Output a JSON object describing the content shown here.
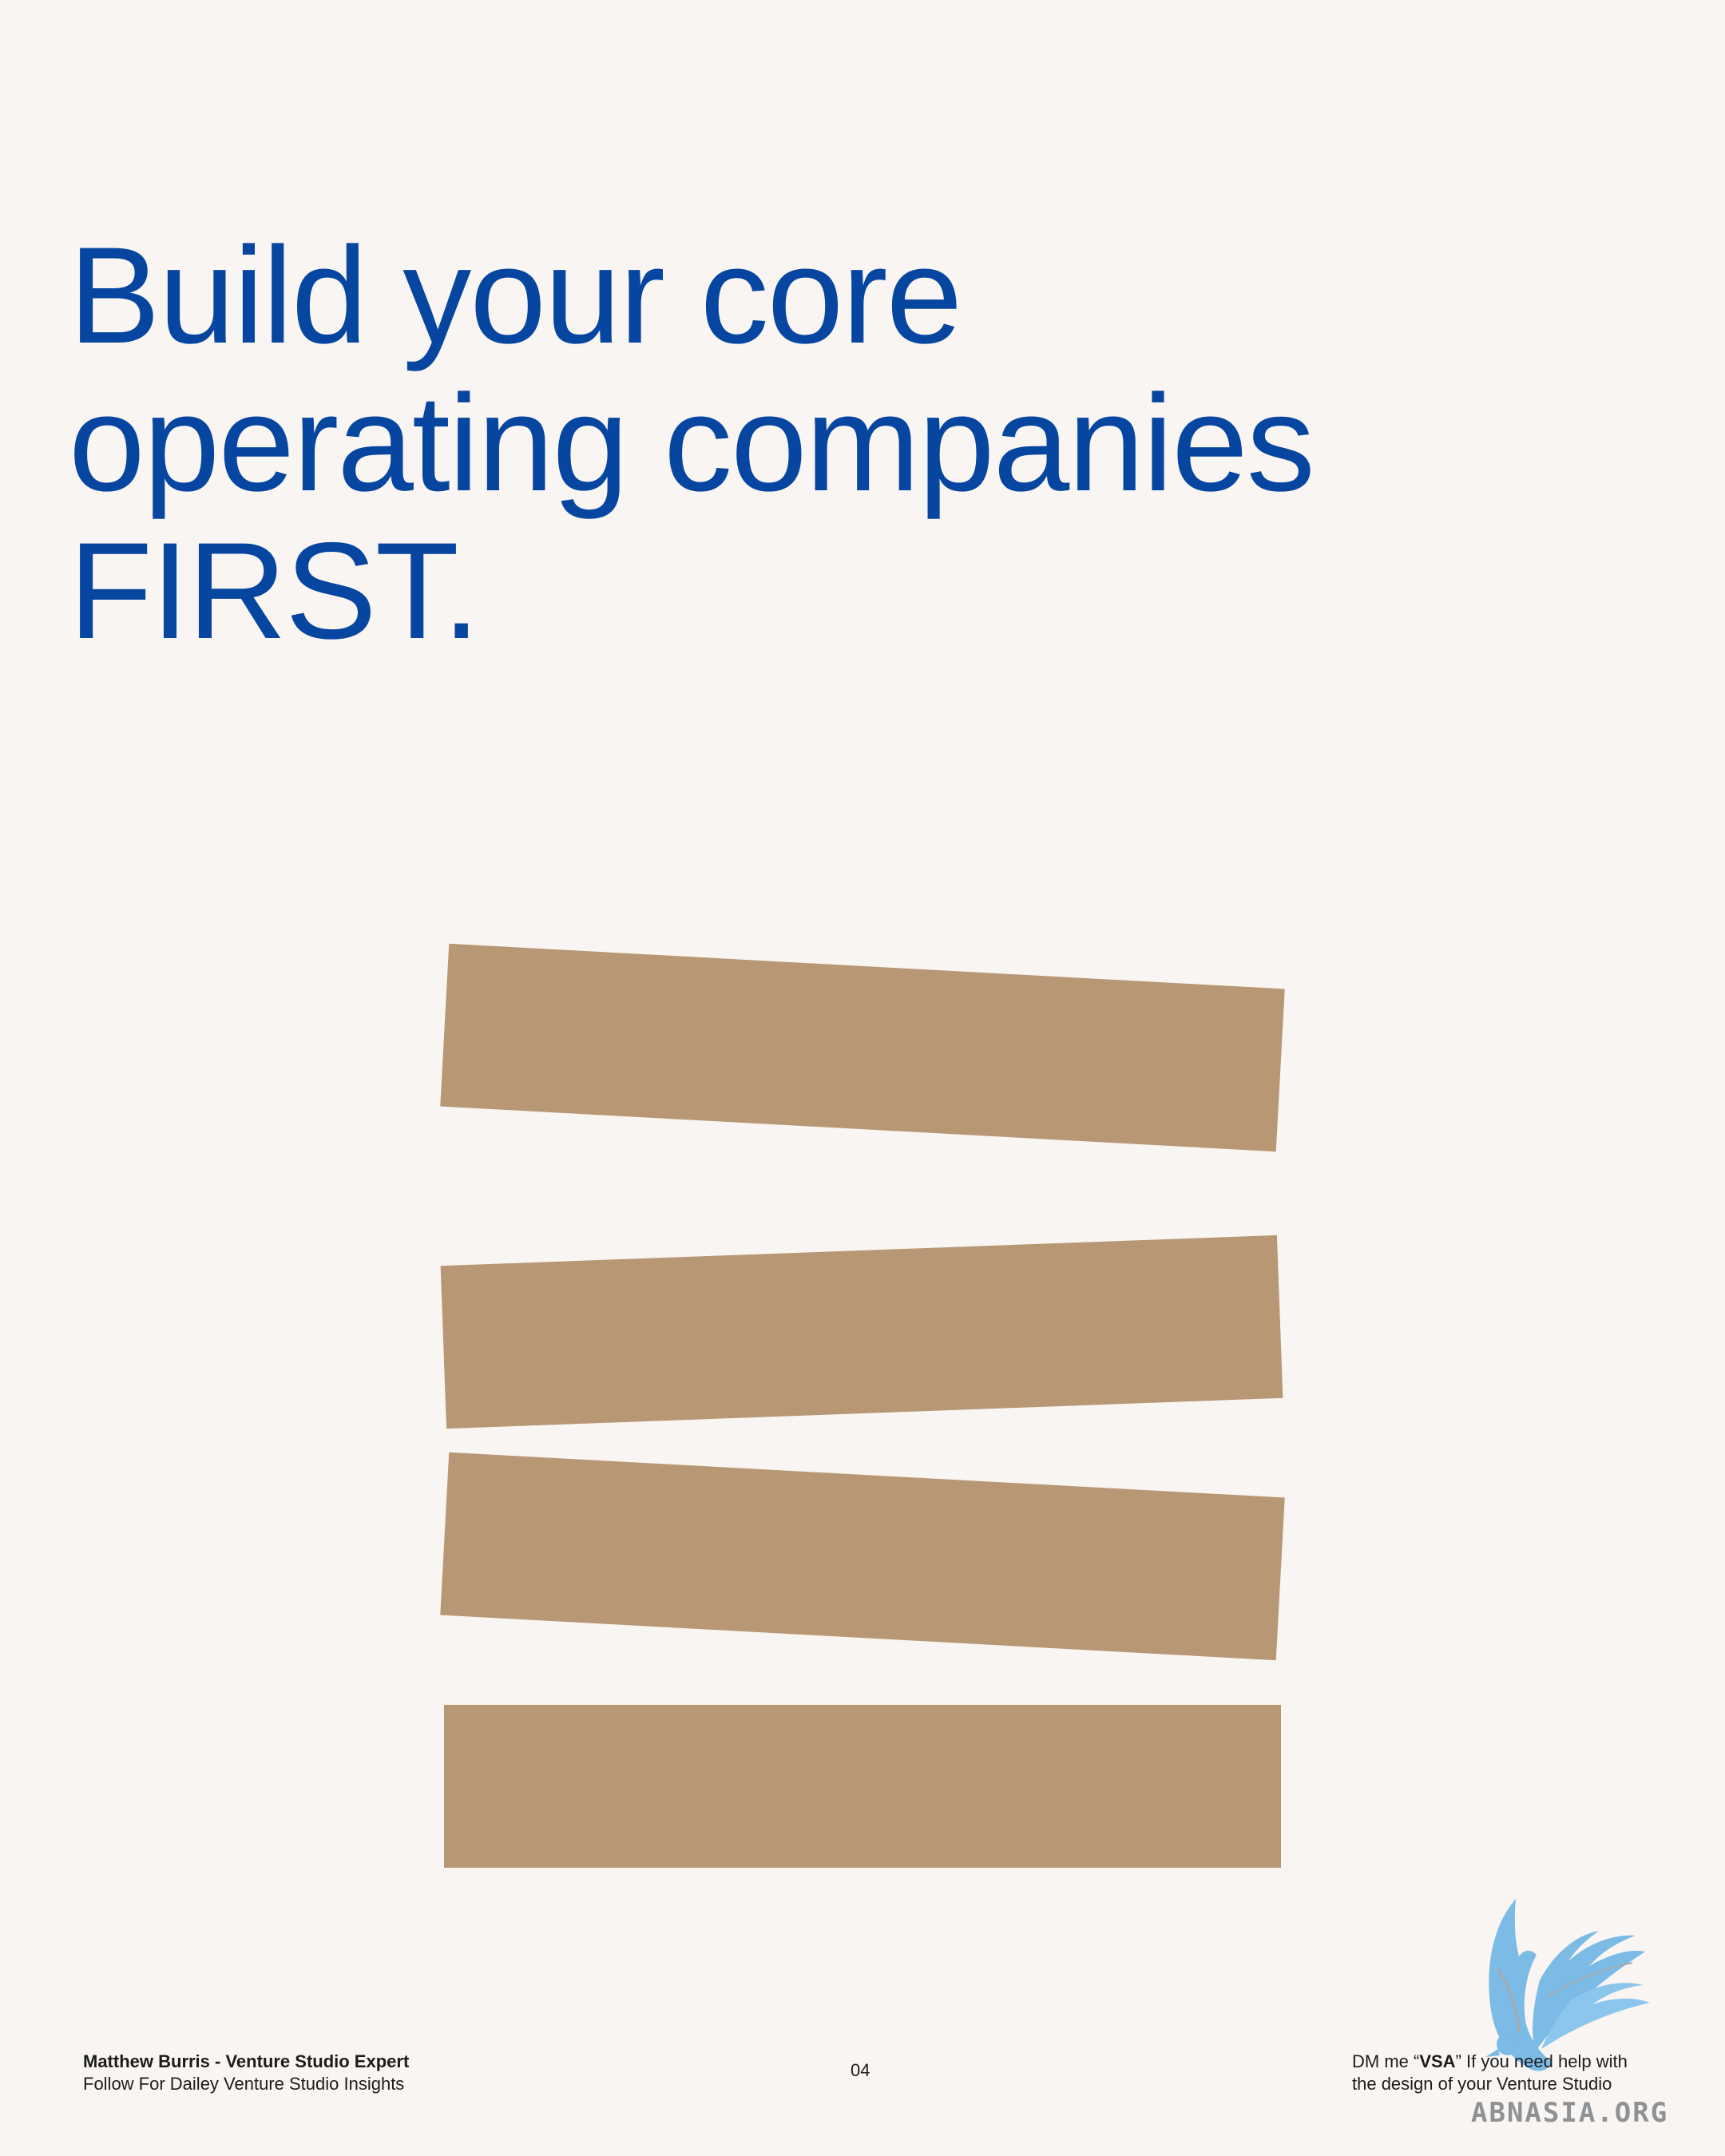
{
  "headline": {
    "line1": "Build your core",
    "line2": "operating companies",
    "line3": "FIRST."
  },
  "illustration": {
    "blocks": 4,
    "color": "#b89775"
  },
  "footer": {
    "author": "Matthew Burris - Venture Studio Expert",
    "tagline": "Follow For Dailey Venture Studio Insights",
    "page_number": "04",
    "cta_prefix": "DM me “",
    "cta_keyword": "VSA",
    "cta_suffix": "” If you need help with",
    "cta_line2": "the design of your Venture Studio"
  },
  "watermark": {
    "text": "ABNASIA.ORG"
  },
  "colors": {
    "background": "#f9f5f2",
    "headline": "#0746a0",
    "blocks": "#b89775",
    "logo": "#7bbbe6"
  },
  "icons": [
    "bird-logo-icon"
  ]
}
